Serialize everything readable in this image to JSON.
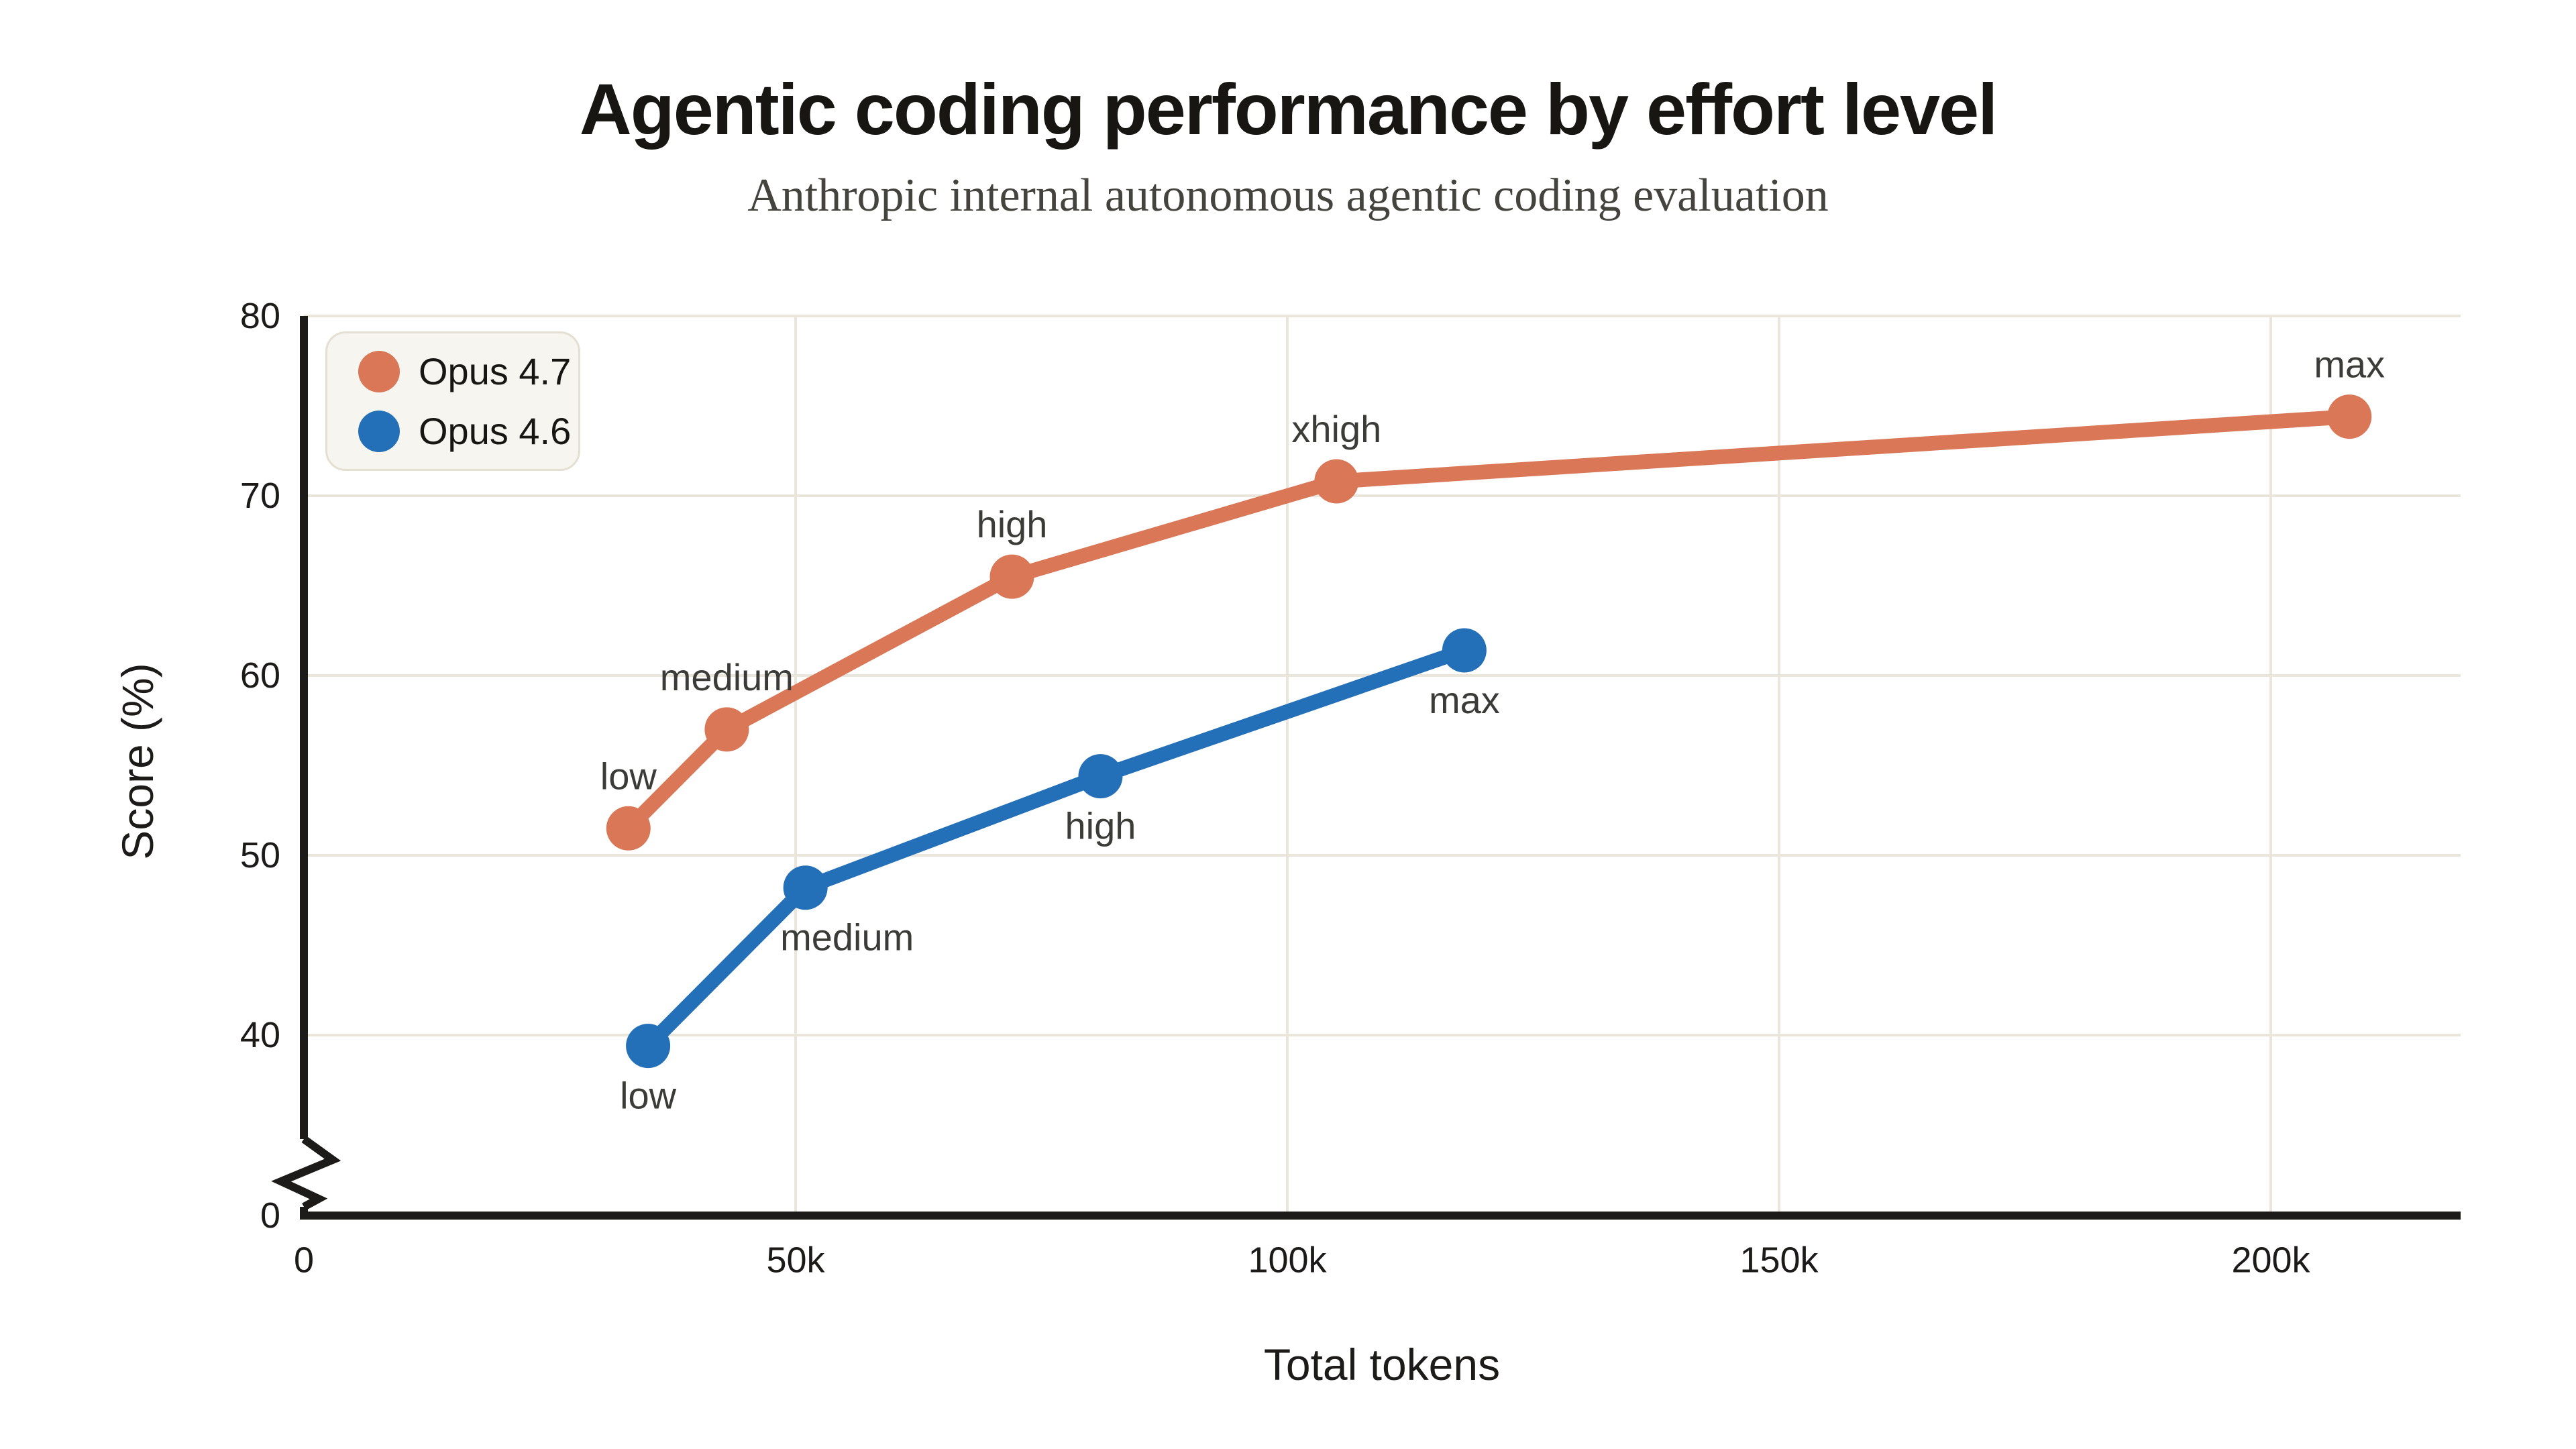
{
  "page": {
    "background": "#FFFFFF"
  },
  "header": {
    "title": "Agentic coding performance by effort level",
    "subtitle": "Anthropic internal autonomous agentic coding evaluation"
  },
  "legend": {
    "items": [
      {
        "label": "Opus 4.7",
        "color": "#D97757"
      },
      {
        "label": "Opus 4.6",
        "color": "#2470B8"
      }
    ]
  },
  "chart_data": {
    "type": "line",
    "title": "Agentic coding performance by effort level",
    "subtitle": "Anthropic internal autonomous agentic coding evaluation",
    "xlabel": "Total tokens",
    "ylabel": "Score (%)",
    "grid": true,
    "legend_position": "top-left",
    "axis_break": {
      "axis": "y",
      "between": [
        0,
        40
      ]
    },
    "x_axis": {
      "min": 0,
      "max": 220000,
      "ticks": [
        {
          "value": 0,
          "label": "0"
        },
        {
          "value": 50000,
          "label": "50k"
        },
        {
          "value": 100000,
          "label": "100k"
        },
        {
          "value": 150000,
          "label": "150k"
        },
        {
          "value": 200000,
          "label": "200k"
        }
      ]
    },
    "y_axis": {
      "display_min": 40,
      "max": 80,
      "ticks": [
        {
          "value": 80,
          "label": "80"
        },
        {
          "value": 70,
          "label": "70"
        },
        {
          "value": 60,
          "label": "60"
        },
        {
          "value": 50,
          "label": "50"
        },
        {
          "value": 40,
          "label": "40"
        },
        {
          "value": 0,
          "label": "0"
        }
      ]
    },
    "series": [
      {
        "name": "Opus 4.7",
        "color": "#D97757",
        "points": [
          {
            "tokens": 33000,
            "score": 51.5,
            "label": "low",
            "label_pos": "above"
          },
          {
            "tokens": 43000,
            "score": 57.0,
            "label": "medium",
            "label_pos": "above"
          },
          {
            "tokens": 72000,
            "score": 65.5,
            "label": "high",
            "label_pos": "above"
          },
          {
            "tokens": 105000,
            "score": 70.8,
            "label": "xhigh",
            "label_pos": "above"
          },
          {
            "tokens": 208000,
            "score": 74.4,
            "label": "max",
            "label_pos": "above"
          }
        ]
      },
      {
        "name": "Opus 4.6",
        "color": "#2470B8",
        "points": [
          {
            "tokens": 35000,
            "score": 39.4,
            "label": "low",
            "label_pos": "below"
          },
          {
            "tokens": 51000,
            "score": 48.2,
            "label": "medium",
            "label_pos": "below-right"
          },
          {
            "tokens": 81000,
            "score": 54.4,
            "label": "high",
            "label_pos": "below"
          },
          {
            "tokens": 118000,
            "score": 61.4,
            "label": "max",
            "label_pos": "below"
          }
        ]
      }
    ]
  },
  "style": {
    "grid_color": "#EAE6DC",
    "axis_color": "#1C1B19",
    "tick_label_color": "#1C1B19",
    "annotation_color": "#3B3B38"
  }
}
